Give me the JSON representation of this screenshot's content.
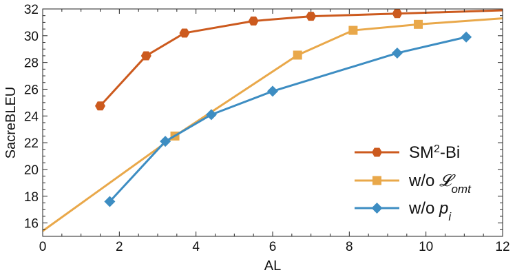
{
  "chart_data": {
    "type": "line",
    "xlabel": "AL",
    "ylabel": "SacreBLEU",
    "xlim": [
      0,
      12
    ],
    "ylim": [
      15,
      32
    ],
    "xticks": [
      0,
      2,
      4,
      6,
      8,
      10,
      12
    ],
    "yticks": [
      16,
      18,
      20,
      22,
      24,
      26,
      28,
      30,
      32
    ],
    "grid": false,
    "legend_position": "bottom-right",
    "series": [
      {
        "name": "SM²-Bi",
        "color": "#cc5a1e",
        "marker": "hexagon",
        "x": [
          1.5,
          2.7,
          3.7,
          5.5,
          7.0,
          9.25,
          12.0
        ],
        "y": [
          24.75,
          28.5,
          30.2,
          31.1,
          31.45,
          31.65,
          31.9
        ]
      },
      {
        "name": "w/o 𝓛omt",
        "color": "#e9a84a",
        "marker": "square",
        "x": [
          0.0,
          3.45,
          6.65,
          8.1,
          9.8,
          12.0
        ],
        "y": [
          15.4,
          22.5,
          28.55,
          30.4,
          30.85,
          31.3
        ]
      },
      {
        "name": "w/o pi",
        "color": "#3d8dc2",
        "marker": "diamond",
        "x": [
          1.75,
          3.2,
          4.4,
          6.0,
          9.25,
          11.05
        ],
        "y": [
          17.6,
          22.1,
          24.1,
          25.85,
          28.7,
          29.9
        ]
      }
    ]
  }
}
